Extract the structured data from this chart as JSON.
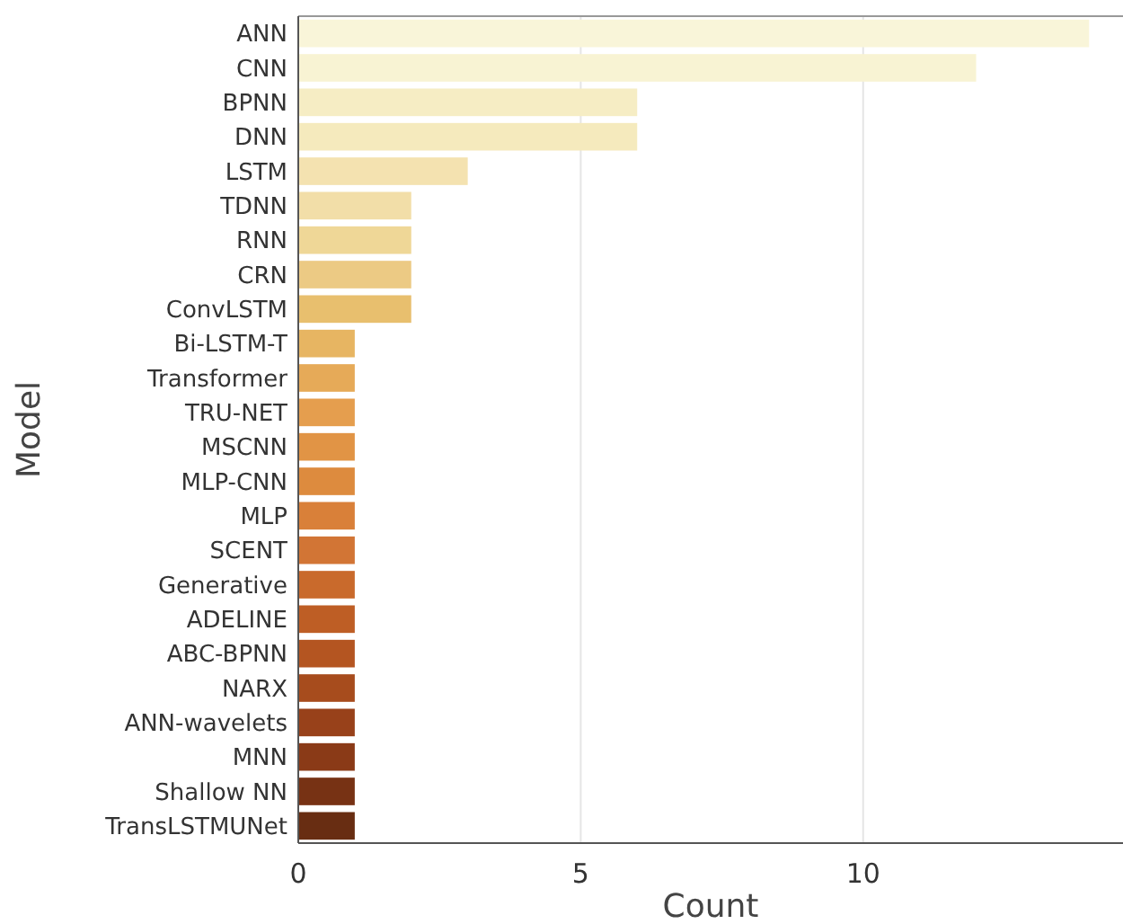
{
  "chart_data": {
    "type": "bar",
    "orientation": "horizontal",
    "xlabel": "Count",
    "ylabel": "Model",
    "categories": [
      "ANN",
      "CNN",
      "BPNN",
      "DNN",
      "LSTM",
      "TDNN",
      "RNN",
      "CRN",
      "ConvLSTM",
      "Bi-LSTM-T",
      "Transformer",
      "TRU-NET",
      "MSCNN",
      "MLP-CNN",
      "MLP",
      "SCENT",
      "Generative",
      "ADELINE",
      "ABC-BPNN",
      "NARX",
      "ANN-wavelets",
      "MNN",
      "Shallow NN",
      "TransLSTMUNet"
    ],
    "values": [
      14,
      12,
      6,
      6,
      3,
      2,
      2,
      2,
      2,
      1,
      1,
      1,
      1,
      1,
      1,
      1,
      1,
      1,
      1,
      1,
      1,
      1,
      1,
      1
    ],
    "colors": [
      "#f9f5d9",
      "#f8f3d3",
      "#f6edc4",
      "#f5eabd",
      "#f4e2b0",
      "#f2dea8",
      "#efd797",
      "#ecca84",
      "#e8bf6e",
      "#e7b562",
      "#e6aa58",
      "#e59e4e",
      "#e19445",
      "#dd8b3e",
      "#d98039",
      "#d27535",
      "#c96a2c",
      "#be5e25",
      "#b45521",
      "#a74c1d",
      "#98411a",
      "#8a3a17",
      "#773214",
      "#682d12"
    ],
    "xlim": [
      0,
      14.6
    ],
    "xticks": [
      0,
      5,
      10
    ],
    "grid": "x"
  }
}
